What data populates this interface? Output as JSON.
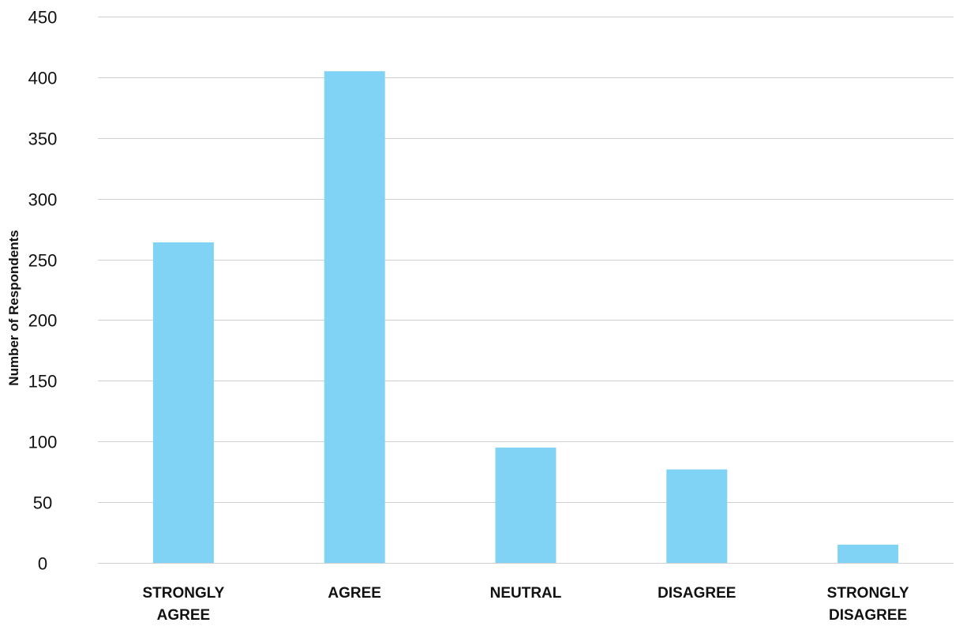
{
  "chart_data": {
    "type": "bar",
    "title": "",
    "xlabel": "",
    "ylabel": "Number of Respondents",
    "ylim": [
      0,
      450
    ],
    "yticks": [
      0,
      50,
      100,
      150,
      200,
      250,
      300,
      350,
      400,
      450
    ],
    "grid": true,
    "legend": "none",
    "categories": [
      [
        "STRONGLY",
        "AGREE"
      ],
      [
        "AGREE"
      ],
      [
        "NEUTRAL"
      ],
      [
        "DISAGREE"
      ],
      [
        "STRONGLY",
        "DISAGREE"
      ]
    ],
    "values": [
      264,
      405,
      95,
      77,
      15
    ],
    "colors": {
      "bar": "#81d3f5",
      "grid": "#d0d0d0",
      "text": "#111111"
    }
  }
}
